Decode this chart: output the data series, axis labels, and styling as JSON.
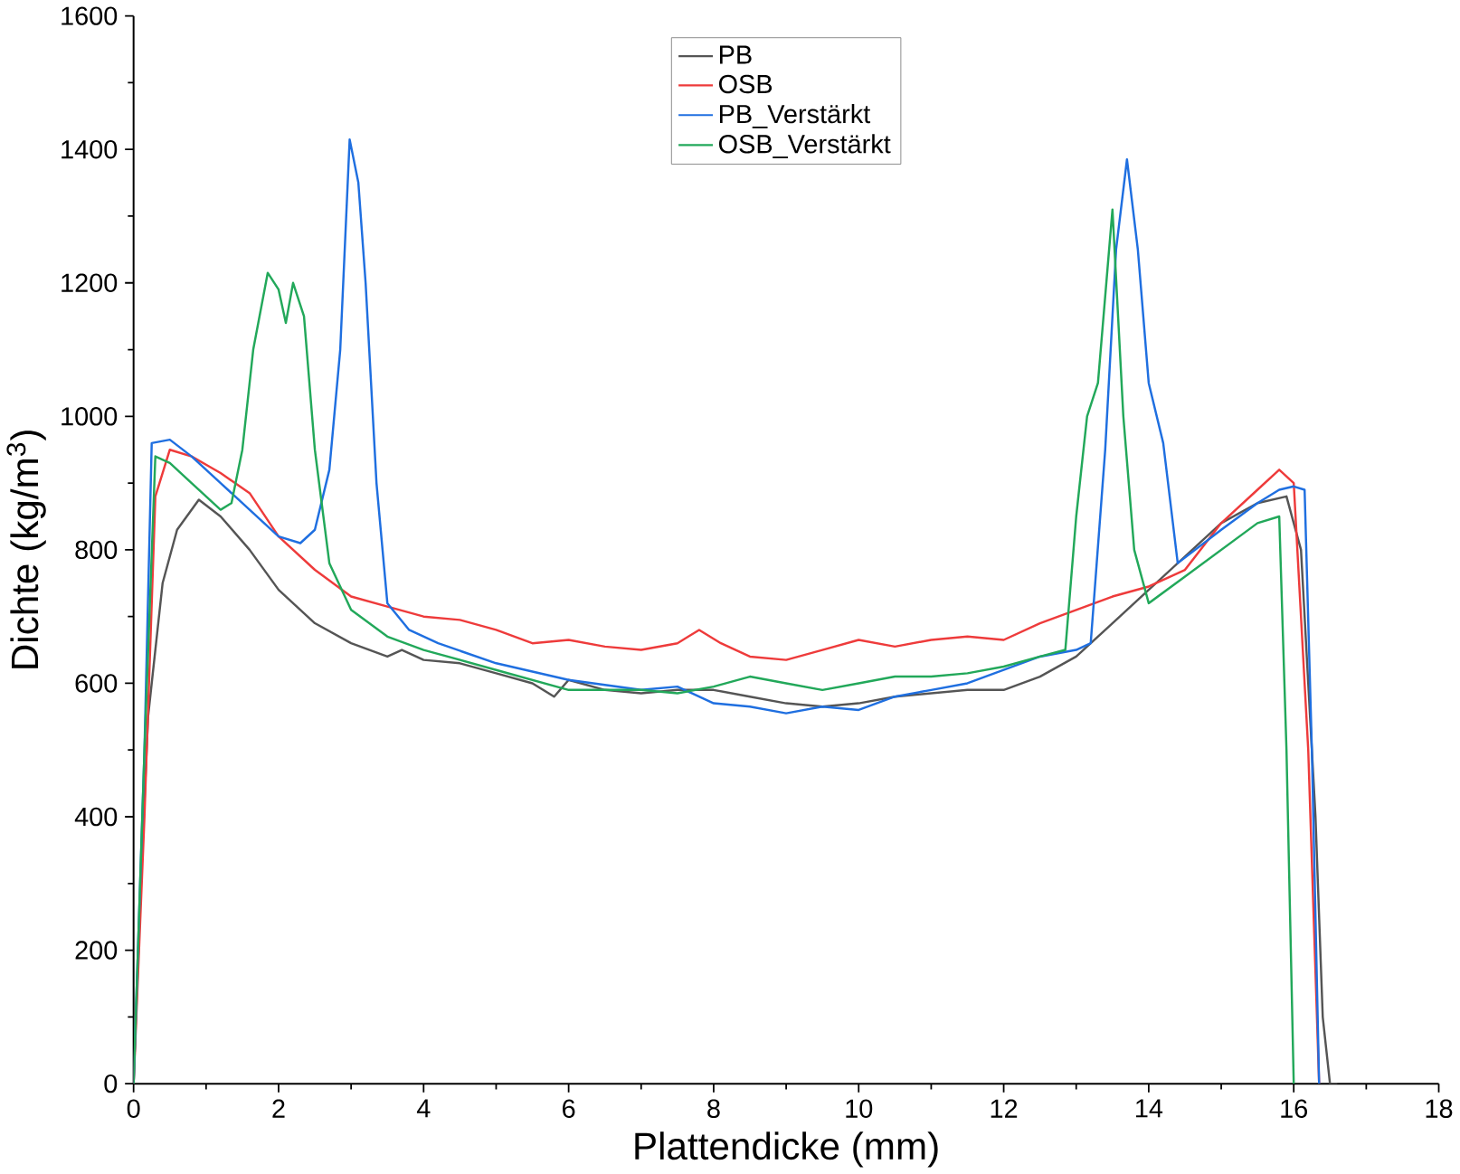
{
  "chart_data": {
    "type": "line",
    "xlabel": "Plattendicke (mm)",
    "ylabel": "Dichte (kg/m$^{3}$)",
    "xlim": [
      0,
      18
    ],
    "ylim": [
      0,
      1600
    ],
    "xticks": [
      0,
      2,
      4,
      6,
      8,
      10,
      12,
      14,
      16,
      18
    ],
    "yticks": [
      0,
      200,
      400,
      600,
      800,
      1000,
      1200,
      1400,
      1600
    ],
    "legend": "top",
    "grid": false,
    "marker": "none",
    "line_style": "solid",
    "series": [
      {
        "name": "PB",
        "color": "#555555",
        "x": [
          0,
          0.1,
          0.2,
          0.4,
          0.6,
          0.9,
          1.2,
          1.6,
          2.0,
          2.5,
          3.0,
          3.5,
          3.7,
          4.0,
          4.5,
          5.0,
          5.5,
          5.8,
          6.0,
          6.5,
          7.0,
          7.5,
          8.0,
          8.5,
          9.0,
          9.5,
          10.0,
          10.5,
          11.0,
          11.5,
          12.0,
          12.5,
          13.0,
          13.5,
          14.0,
          14.5,
          15.0,
          15.5,
          15.9,
          16.1,
          16.3,
          16.4,
          16.5,
          16.6
        ],
        "values": [
          0,
          300,
          550,
          750,
          830,
          875,
          850,
          800,
          740,
          690,
          660,
          640,
          650,
          635,
          630,
          615,
          600,
          580,
          605,
          590,
          585,
          590,
          590,
          580,
          570,
          565,
          570,
          580,
          585,
          590,
          590,
          610,
          640,
          690,
          740,
          790,
          840,
          870,
          880,
          800,
          400,
          100,
          0,
          0
        ]
      },
      {
        "name": "OSB",
        "color": "#ee3b3b",
        "x": [
          0,
          0.15,
          0.3,
          0.5,
          0.8,
          1.2,
          1.6,
          2.0,
          2.5,
          3.0,
          3.5,
          4.0,
          4.5,
          5.0,
          5.5,
          6.0,
          6.5,
          7.0,
          7.5,
          7.8,
          8.1,
          8.5,
          9.0,
          9.5,
          10.0,
          10.5,
          11.0,
          11.5,
          12.0,
          12.5,
          13.0,
          13.5,
          14.0,
          14.5,
          15.0,
          15.5,
          15.8,
          16.0,
          16.2,
          16.35
        ],
        "values": [
          0,
          400,
          880,
          950,
          940,
          915,
          885,
          820,
          770,
          730,
          715,
          700,
          695,
          680,
          660,
          665,
          655,
          650,
          660,
          680,
          660,
          640,
          635,
          650,
          665,
          655,
          665,
          670,
          665,
          690,
          710,
          730,
          745,
          770,
          840,
          890,
          920,
          900,
          500,
          0
        ]
      },
      {
        "name": "PB_Verstärkt",
        "color": "#1f6fe0",
        "x": [
          0,
          0.15,
          0.25,
          0.5,
          0.8,
          1.2,
          1.6,
          2.0,
          2.3,
          2.5,
          2.7,
          2.85,
          2.98,
          3.1,
          3.2,
          3.35,
          3.5,
          3.8,
          4.2,
          5.0,
          6.0,
          7.0,
          7.5,
          8.0,
          8.5,
          9.0,
          9.5,
          10.0,
          10.5,
          11.0,
          11.5,
          12.0,
          12.5,
          13.0,
          13.2,
          13.4,
          13.55,
          13.7,
          13.85,
          14.0,
          14.2,
          14.4,
          15.0,
          15.5,
          15.8,
          16.0,
          16.15,
          16.25,
          16.35
        ],
        "values": [
          0,
          500,
          960,
          965,
          940,
          900,
          860,
          820,
          810,
          830,
          920,
          1100,
          1415,
          1350,
          1200,
          900,
          720,
          680,
          660,
          630,
          605,
          590,
          595,
          570,
          565,
          555,
          565,
          560,
          580,
          590,
          600,
          620,
          640,
          650,
          660,
          950,
          1250,
          1385,
          1250,
          1050,
          960,
          780,
          830,
          870,
          890,
          895,
          890,
          500,
          0
        ]
      },
      {
        "name": "OSB_Verstärkt",
        "color": "#22a85a",
        "x": [
          0,
          0.15,
          0.3,
          0.5,
          0.8,
          1.2,
          1.35,
          1.5,
          1.65,
          1.85,
          2.0,
          2.1,
          2.2,
          2.35,
          2.5,
          2.7,
          3.0,
          3.5,
          4.0,
          5.0,
          6.0,
          7.0,
          7.5,
          8.0,
          8.5,
          9.0,
          9.5,
          10.0,
          10.5,
          11.0,
          11.5,
          12.0,
          12.5,
          12.85,
          13.0,
          13.15,
          13.3,
          13.5,
          13.65,
          13.8,
          14.0,
          14.5,
          15.0,
          15.5,
          15.8,
          15.9,
          16.0
        ],
        "values": [
          0,
          500,
          940,
          930,
          900,
          860,
          870,
          950,
          1100,
          1215,
          1190,
          1140,
          1200,
          1150,
          950,
          780,
          710,
          670,
          650,
          620,
          590,
          590,
          585,
          595,
          610,
          600,
          590,
          600,
          610,
          610,
          615,
          625,
          640,
          650,
          850,
          1000,
          1050,
          1310,
          1000,
          800,
          720,
          760,
          800,
          840,
          850,
          500,
          0
        ]
      }
    ]
  }
}
